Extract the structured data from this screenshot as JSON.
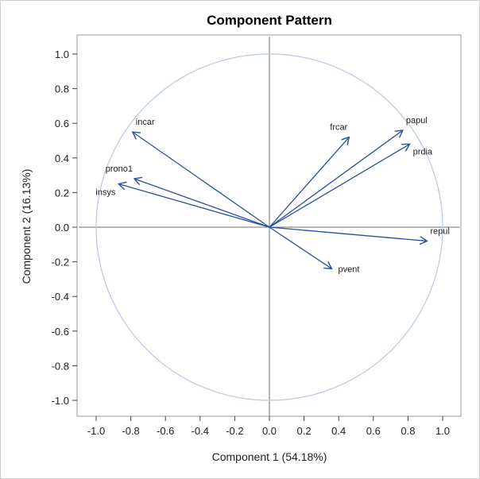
{
  "chart_data": {
    "type": "scatter",
    "subtype": "loading-vector-plot",
    "title": "Component Pattern",
    "xlabel": "Component 1 (54.18%)",
    "ylabel": "Component 2 (16.13%)",
    "xlim": [
      -1.1,
      1.1
    ],
    "ylim": [
      -1.1,
      1.1
    ],
    "xticks": [
      "-1.0",
      "-0.8",
      "-0.6",
      "-0.4",
      "-0.2",
      "0.0",
      "0.2",
      "0.4",
      "0.6",
      "0.8",
      "1.0"
    ],
    "yticks": [
      "1.0",
      "0.8",
      "0.6",
      "0.4",
      "0.2",
      "0.0",
      "-0.2",
      "-0.4",
      "-0.6",
      "-0.8",
      "-1.0"
    ],
    "reference_circle_radius": 1.0,
    "vectors": [
      {
        "name": "incar",
        "x": -0.79,
        "y": 0.55,
        "label_pos": "above-right"
      },
      {
        "name": "prono1",
        "x": -0.78,
        "y": 0.28,
        "label_pos": "above-left"
      },
      {
        "name": "insys",
        "x": -0.87,
        "y": 0.25,
        "label_pos": "below-left"
      },
      {
        "name": "frcar",
        "x": 0.46,
        "y": 0.52,
        "label_pos": "above-left"
      },
      {
        "name": "papul",
        "x": 0.77,
        "y": 0.56,
        "label_pos": "above-right"
      },
      {
        "name": "prdia",
        "x": 0.81,
        "y": 0.48,
        "label_pos": "below-right"
      },
      {
        "name": "repul",
        "x": 0.91,
        "y": -0.08,
        "label_pos": "above-right"
      },
      {
        "name": "pvent",
        "x": 0.36,
        "y": -0.24,
        "label_pos": "right"
      }
    ],
    "colors": {
      "vector": "#2a4f9e",
      "circle": "#b8c8e6",
      "axes_ref": "#6e6e6e"
    }
  }
}
